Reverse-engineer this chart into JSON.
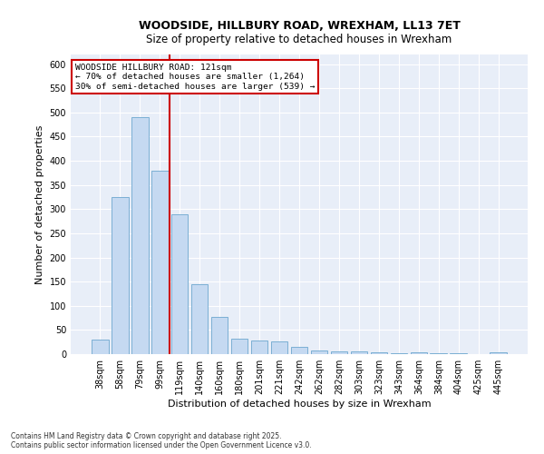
{
  "title": "WOODSIDE, HILLBURY ROAD, WREXHAM, LL13 7ET",
  "subtitle": "Size of property relative to detached houses in Wrexham",
  "xlabel": "Distribution of detached houses by size in Wrexham",
  "ylabel": "Number of detached properties",
  "categories": [
    "38sqm",
    "58sqm",
    "79sqm",
    "99sqm",
    "119sqm",
    "140sqm",
    "160sqm",
    "180sqm",
    "201sqm",
    "221sqm",
    "242sqm",
    "262sqm",
    "282sqm",
    "303sqm",
    "323sqm",
    "343sqm",
    "364sqm",
    "384sqm",
    "404sqm",
    "425sqm",
    "445sqm"
  ],
  "values": [
    30,
    325,
    490,
    380,
    290,
    145,
    77,
    32,
    29,
    27,
    15,
    7,
    5,
    5,
    3,
    2,
    3,
    2,
    2,
    0,
    4
  ],
  "bar_color": "#c5d9f1",
  "bar_edge_color": "#7bafd4",
  "fig_bg_color": "#ffffff",
  "plot_bg_color": "#e8eef8",
  "grid_color": "#ffffff",
  "vline_color": "#cc0000",
  "vline_x_index": 4,
  "annotation_line1": "WOODSIDE HILLBURY ROAD: 121sqm",
  "annotation_line2": "← 70% of detached houses are smaller (1,264)",
  "annotation_line3": "30% of semi-detached houses are larger (539) →",
  "annotation_box_facecolor": "#ffffff",
  "annotation_box_edgecolor": "#cc0000",
  "footer": "Contains HM Land Registry data © Crown copyright and database right 2025.\nContains public sector information licensed under the Open Government Licence v3.0.",
  "ylim": [
    0,
    620
  ],
  "yticks": [
    0,
    50,
    100,
    150,
    200,
    250,
    300,
    350,
    400,
    450,
    500,
    550,
    600
  ],
  "title_fontsize": 9,
  "subtitle_fontsize": 8.5,
  "tick_fontsize": 7,
  "ylabel_fontsize": 8,
  "xlabel_fontsize": 8,
  "footer_fontsize": 5.5
}
